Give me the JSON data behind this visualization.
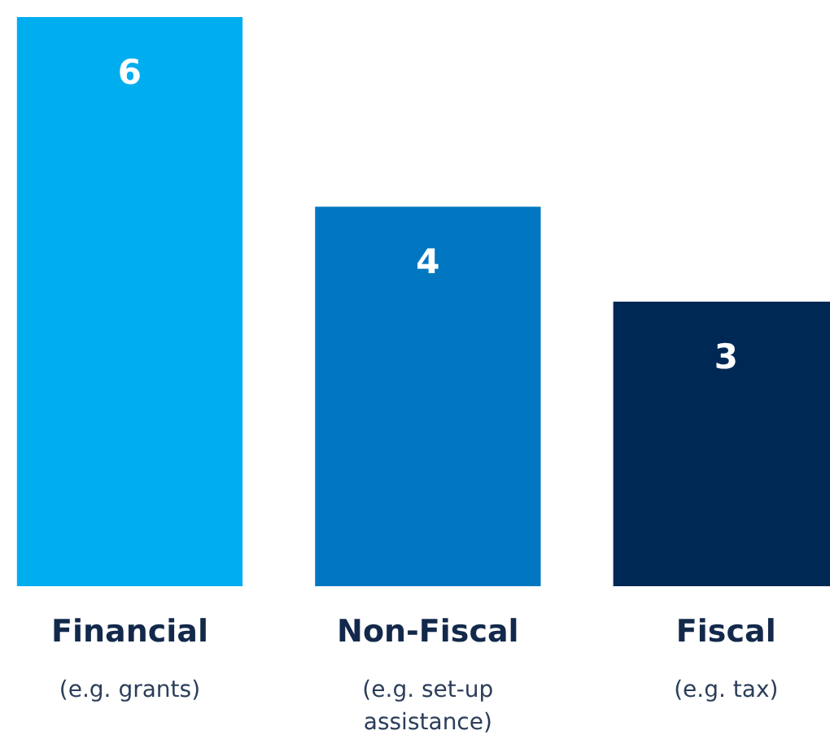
{
  "chart_data": {
    "type": "bar",
    "categories": [
      "Financial\n(e.g. grants)",
      "Non-Fiscal\n(e.g. set-up\nassistance)",
      "Fiscal\n(e.g. tax)"
    ],
    "values": [
      6,
      4,
      3
    ],
    "colors": [
      "#00adef",
      "#0077c0",
      "#002855"
    ],
    "data_labels": true
  }
}
